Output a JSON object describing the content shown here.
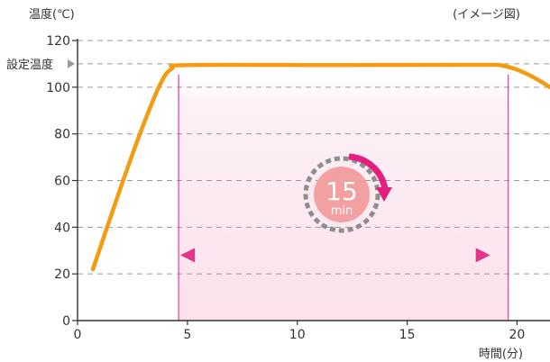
{
  "chart_data": {
    "type": "line",
    "ylabel": "温度(℃)",
    "xlabel": "時間(分)",
    "note": "(イメージ図)",
    "set_temp_label": "設定温度",
    "set_temp_value": 110,
    "x_ticks": [
      0,
      5,
      10,
      15,
      20
    ],
    "y_ticks": [
      0,
      20,
      40,
      60,
      80,
      100,
      120
    ],
    "xlim": [
      0,
      21.5
    ],
    "ylim": [
      0,
      120
    ],
    "grid": true,
    "series": [
      {
        "color": "#f39c12",
        "points": [
          [
            0.7,
            22
          ],
          [
            2,
            58
          ],
          [
            3,
            84
          ],
          [
            3.8,
            102
          ],
          [
            4.3,
            108
          ],
          [
            5,
            109.5
          ],
          [
            12,
            109.5
          ],
          [
            18.5,
            109.6
          ],
          [
            19.3,
            109.3
          ],
          [
            20,
            107.5
          ],
          [
            20.8,
            104
          ],
          [
            21.5,
            100
          ]
        ]
      }
    ],
    "highlight": {
      "x_start": 4.6,
      "x_end": 19.6,
      "duration_number": "15",
      "duration_unit": "min",
      "band_color": "#fbe4ef",
      "line_color": "#e83e8c",
      "arrow_y": 28
    }
  }
}
